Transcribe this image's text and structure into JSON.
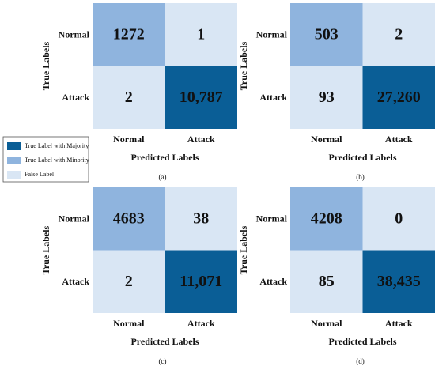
{
  "legend": [
    {
      "name": "True Label with Majority",
      "color": "#0a5e96"
    },
    {
      "name": "True Label with Minority",
      "color": "#8fb4de"
    },
    {
      "name": "False Label",
      "color": "#d9e6f4"
    }
  ],
  "chart_data": [
    {
      "type": "confusion-matrix",
      "caption": "(a)",
      "xlabel": "Predicted Labels",
      "ylabel": "True Labels",
      "x_categories": [
        "Normal",
        "Attack"
      ],
      "y_categories": [
        "Normal",
        "Attack"
      ],
      "values": [
        [
          1272,
          1
        ],
        [
          2,
          10787
        ]
      ],
      "value_labels": [
        [
          "1272",
          "1"
        ],
        [
          "2",
          "10,787"
        ]
      ],
      "colors": [
        [
          "#8fb4de",
          "#d9e6f4"
        ],
        [
          "#d9e6f4",
          "#0a5e96"
        ]
      ]
    },
    {
      "type": "confusion-matrix",
      "caption": "(b)",
      "xlabel": "Predicted Labels",
      "ylabel": "True Labels",
      "x_categories": [
        "Normal",
        "Attack"
      ],
      "y_categories": [
        "Normal",
        "Attack"
      ],
      "values": [
        [
          503,
          2
        ],
        [
          93,
          27260
        ]
      ],
      "value_labels": [
        [
          "503",
          "2"
        ],
        [
          "93",
          "27,260"
        ]
      ],
      "colors": [
        [
          "#8fb4de",
          "#d9e6f4"
        ],
        [
          "#d9e6f4",
          "#0a5e96"
        ]
      ]
    },
    {
      "type": "confusion-matrix",
      "caption": "(c)",
      "xlabel": "Predicted Labels",
      "ylabel": "True Labels",
      "x_categories": [
        "Normal",
        "Attack"
      ],
      "y_categories": [
        "Normal",
        "Attack"
      ],
      "values": [
        [
          4683,
          38
        ],
        [
          2,
          11071
        ]
      ],
      "value_labels": [
        [
          "4683",
          "38"
        ],
        [
          "2",
          "11,071"
        ]
      ],
      "colors": [
        [
          "#8fb4de",
          "#d9e6f4"
        ],
        [
          "#d9e6f4",
          "#0a5e96"
        ]
      ]
    },
    {
      "type": "confusion-matrix",
      "caption": "(d)",
      "xlabel": "Predicted Labels",
      "ylabel": "True Labels",
      "x_categories": [
        "Normal",
        "Attack"
      ],
      "y_categories": [
        "Normal",
        "Attack"
      ],
      "values": [
        [
          4208,
          0
        ],
        [
          85,
          38435
        ]
      ],
      "value_labels": [
        [
          "4208",
          "0"
        ],
        [
          "85",
          "38,435"
        ]
      ],
      "colors": [
        [
          "#8fb4de",
          "#d9e6f4"
        ],
        [
          "#d9e6f4",
          "#0a5e96"
        ]
      ]
    }
  ]
}
